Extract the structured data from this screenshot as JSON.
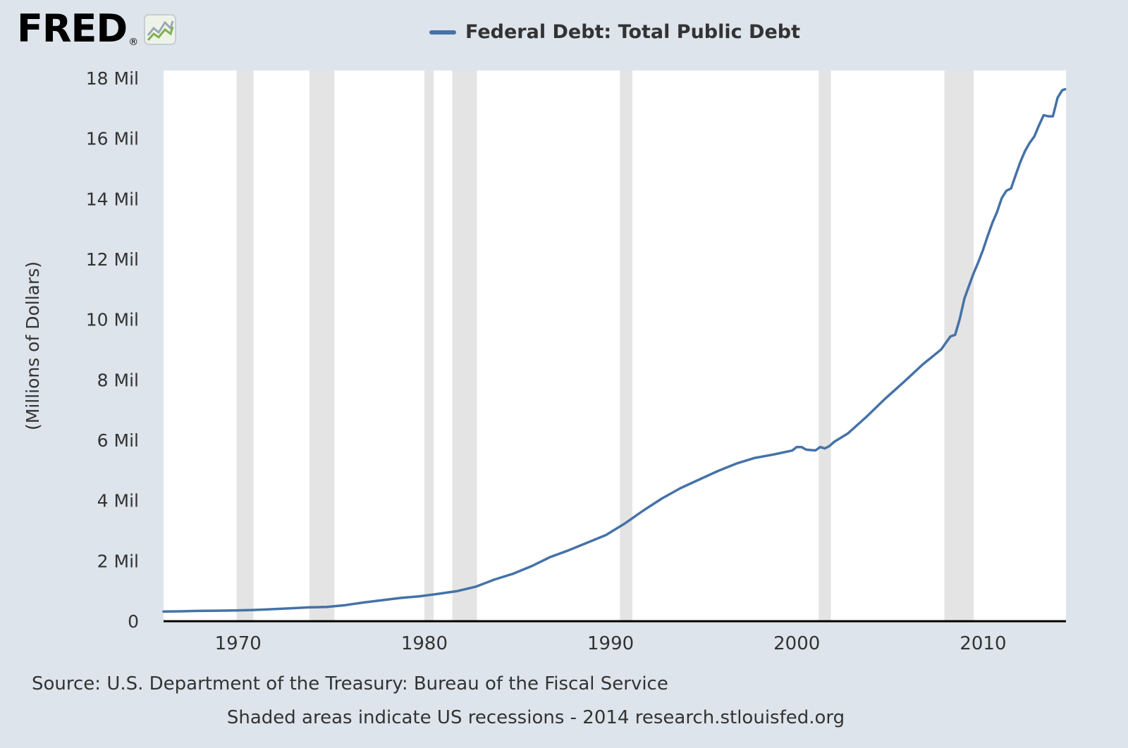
{
  "header": {
    "logo_text": "FRED",
    "logo_registered": "®",
    "legend": {
      "label": "Federal Debt: Total Public Debt"
    }
  },
  "footer": {
    "source_line": "Source: U.S. Department of the Treasury: Bureau of the Fiscal Service",
    "note_line": "Shaded areas indicate US recessions - 2014 research.stlouisfed.org"
  },
  "chart_data": {
    "type": "line",
    "title": "Federal Debt: Total Public Debt",
    "xlabel": "",
    "ylabel": "(Millions of Dollars)",
    "x_range": [
      1966,
      2014.45
    ],
    "y_range": [
      0,
      18000000
    ],
    "grid": false,
    "legend_position": "top-center",
    "line_color": "#4572a7",
    "recession_color": "#e4e4e4",
    "plot_bg": "#ffffff",
    "y_ticks": [
      {
        "value": 0,
        "label": "0"
      },
      {
        "value": 2000000,
        "label": "2 Mil"
      },
      {
        "value": 4000000,
        "label": "4 Mil"
      },
      {
        "value": 6000000,
        "label": "6 Mil"
      },
      {
        "value": 8000000,
        "label": "8 Mil"
      },
      {
        "value": 10000000,
        "label": "10 Mil"
      },
      {
        "value": 12000000,
        "label": "12 Mil"
      },
      {
        "value": 14000000,
        "label": "14 Mil"
      },
      {
        "value": 16000000,
        "label": "16 Mil"
      },
      {
        "value": 18000000,
        "label": "18 Mil"
      }
    ],
    "x_ticks": [
      {
        "value": 1970,
        "label": "1970"
      },
      {
        "value": 1980,
        "label": "1980"
      },
      {
        "value": 1990,
        "label": "1990"
      },
      {
        "value": 2000,
        "label": "2000"
      },
      {
        "value": 2010,
        "label": "2010"
      }
    ],
    "recessions": [
      [
        1969.92,
        1970.83
      ],
      [
        1973.83,
        1975.17
      ],
      [
        1980.0,
        1980.5
      ],
      [
        1981.5,
        1982.83
      ],
      [
        1990.5,
        1991.17
      ],
      [
        2001.17,
        2001.83
      ],
      [
        2007.92,
        2009.5
      ]
    ],
    "series": [
      {
        "name": "Federal Debt: Total Public Debt",
        "x": [
          1966.0,
          1966.75,
          1967.75,
          1968.75,
          1969.75,
          1970.75,
          1971.75,
          1972.75,
          1973.75,
          1974.75,
          1975.75,
          1976.75,
          1977.75,
          1978.75,
          1979.75,
          1980.75,
          1981.75,
          1982.75,
          1983.75,
          1984.75,
          1985.75,
          1986.75,
          1987.75,
          1988.75,
          1989.75,
          1990.75,
          1991.75,
          1992.75,
          1993.75,
          1994.75,
          1995.75,
          1996.75,
          1997.75,
          1998.75,
          1999.75,
          2000.0,
          2000.25,
          2000.5,
          2000.75,
          2001.0,
          2001.25,
          2001.5,
          2001.75,
          2002.0,
          2002.75,
          2003.75,
          2004.75,
          2005.75,
          2006.75,
          2007.75,
          2008.0,
          2008.25,
          2008.5,
          2008.75,
          2009.0,
          2009.25,
          2009.5,
          2009.75,
          2010.0,
          2010.25,
          2010.5,
          2010.75,
          2011.0,
          2011.25,
          2011.5,
          2011.75,
          2012.0,
          2012.25,
          2012.5,
          2012.75,
          2013.0,
          2013.25,
          2013.5,
          2013.75,
          2014.0,
          2014.25,
          2014.4
        ],
        "y": [
          321000,
          328000,
          340000,
          348000,
          354000,
          371000,
          398000,
          427000,
          458000,
          475000,
          533000,
          620000,
          699000,
          772000,
          827000,
          908000,
          998000,
          1142000,
          1377000,
          1572000,
          1823000,
          2125000,
          2350000,
          2602000,
          2857000,
          3233000,
          3665000,
          4065000,
          4411000,
          4693000,
          4974000,
          5225000,
          5413000,
          5526000,
          5656000,
          5776000,
          5773000,
          5686000,
          5674000,
          5662000,
          5774000,
          5727000,
          5807000,
          5943000,
          6228000,
          6783000,
          7379000,
          7933000,
          8507000,
          9008000,
          9229000,
          9438000,
          9492000,
          10025000,
          10700000,
          11127000,
          11545000,
          11910000,
          12311000,
          12773000,
          13202000,
          13562000,
          14025000,
          14270000,
          14343000,
          14790000,
          15223000,
          15583000,
          15856000,
          16066000,
          16433000,
          16771000,
          16738000,
          16738000,
          17352000,
          17601000,
          17633000
        ]
      }
    ]
  }
}
